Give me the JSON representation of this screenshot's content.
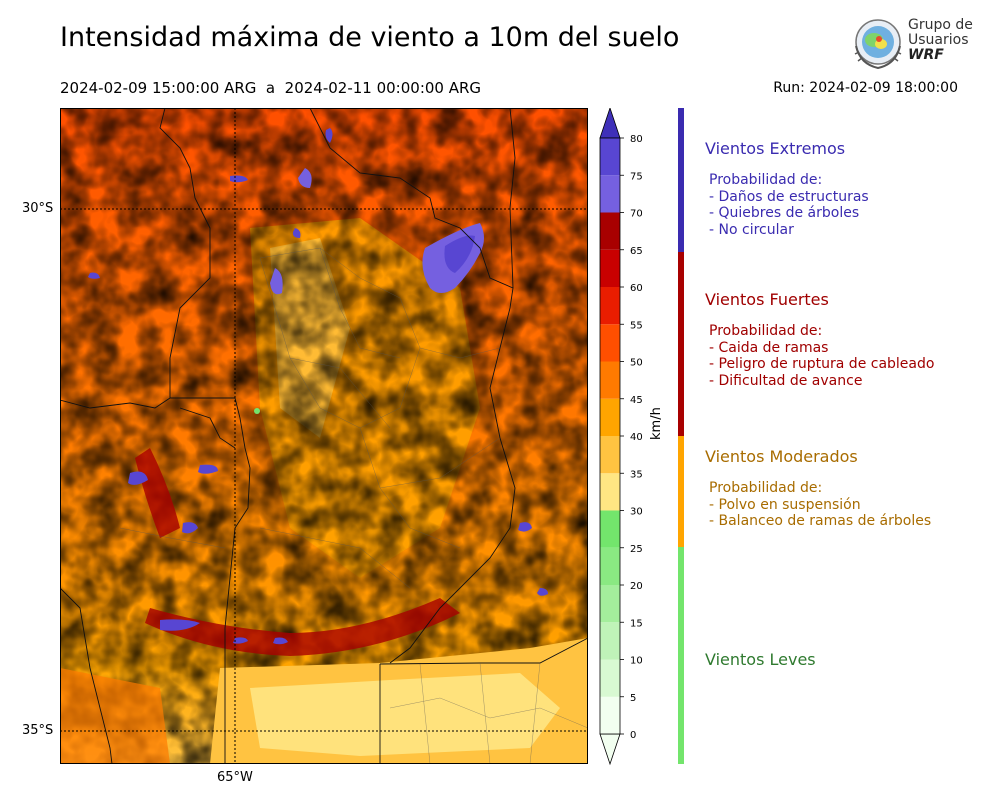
{
  "header": {
    "title": "Intensidad máxima de viento a 10m del suelo",
    "period": "2024-02-09 15:00:00 ARG  a  2024-02-11 00:00:00 ARG",
    "run": "Run: 2024-02-09 18:00:00"
  },
  "logo": {
    "line1": "Grupo de",
    "line2": "Usuarios",
    "line3": "WRF"
  },
  "map": {
    "lat_labels": [
      "30°S",
      "35°S"
    ],
    "lon_labels": [
      "65°W"
    ]
  },
  "colorbar": {
    "unit": "km/h",
    "ticks": [
      "0",
      "5",
      "10",
      "15",
      "20",
      "25",
      "30",
      "35",
      "40",
      "45",
      "50",
      "55",
      "60",
      "65",
      "70",
      "75",
      "80"
    ],
    "colors": [
      "#f2fff0",
      "#d8f9d2",
      "#bff3b8",
      "#a4ee9c",
      "#8ae982",
      "#73e56c",
      "#ffe683",
      "#ffc341",
      "#ffa500",
      "#ff7a00",
      "#ff4f00",
      "#e91d00",
      "#c80000",
      "#a80000",
      "#7560e0",
      "#5846d2",
      "#3f30b9"
    ]
  },
  "categories": [
    {
      "title": "Vientos Extremos",
      "color": "#3a2bb0",
      "lines": [
        "Probabilidad de:",
        "- Daños de estructuras",
        "- Quiebres de árboles",
        "- No circular"
      ]
    },
    {
      "title": "Vientos Fuertes",
      "color": "#a00000",
      "lines": [
        "Probabilidad de:",
        "- Caida de ramas",
        "- Peligro de ruptura de cableado",
        "- Dificultad de avance"
      ]
    },
    {
      "title": "Vientos Moderados",
      "color": "#a86c00",
      "lines": [
        "Probabilidad de:",
        "- Polvo en suspensión",
        "- Balanceo de ramas de árboles"
      ]
    },
    {
      "title": "Vientos Leves",
      "color": "#2f7a2f",
      "lines": []
    }
  ],
  "strip_colors": {
    "extremos": "#3a2bb0",
    "fuertes": "#a80000",
    "moderados": "#ffa500",
    "leves": "#73e56c"
  }
}
